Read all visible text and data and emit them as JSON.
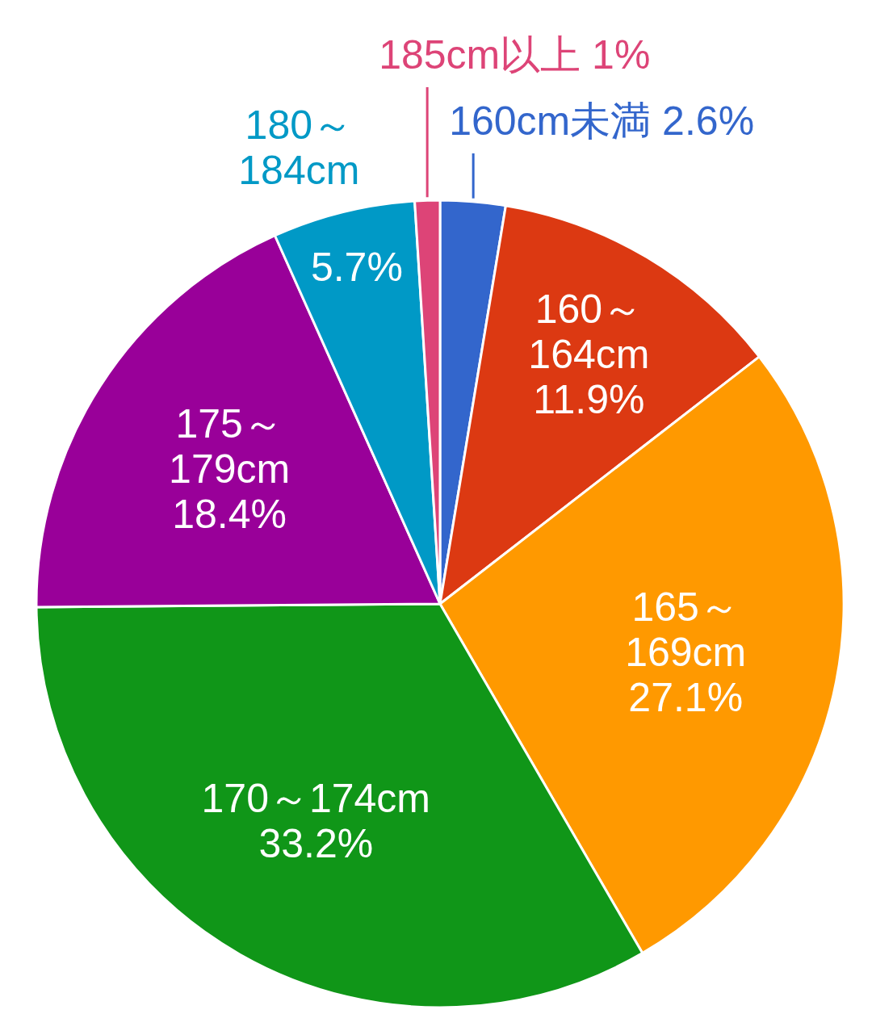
{
  "chart_data": {
    "type": "pie",
    "categories": [
      "160cm未満",
      "160～164cm",
      "165～169cm",
      "170～174cm",
      "175～179cm",
      "180～184cm",
      "185cm以上"
    ],
    "values": [
      2.6,
      11.9,
      27.1,
      33.2,
      18.4,
      5.7,
      1
    ],
    "value_labels": [
      "2.6%",
      "11.9%",
      "27.1%",
      "33.2%",
      "18.4%",
      "5.7%",
      "1%"
    ],
    "colors": [
      "#3366cc",
      "#dc3912",
      "#ff9900",
      "#109618",
      "#990099",
      "#0099c6",
      "#dd4477"
    ]
  }
}
